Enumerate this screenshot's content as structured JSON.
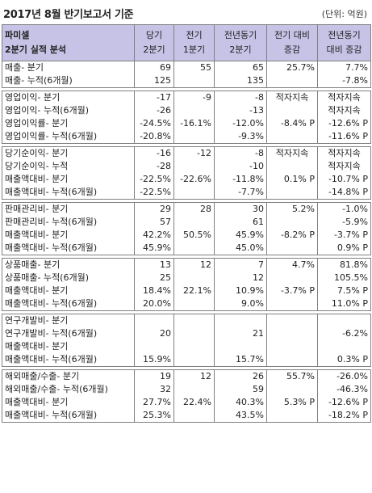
{
  "title": "2017년 8월 반기보고서 기준",
  "unit": "(단위: 억원)",
  "headers": [
    [
      "파미셀",
      "2분기 실적 분석"
    ],
    [
      "당기",
      "2분기"
    ],
    [
      "전기",
      "1분기"
    ],
    [
      "전년동기",
      "2분기"
    ],
    [
      "전기 대비",
      "증감"
    ],
    [
      "전년동기",
      "대비 증감"
    ]
  ],
  "groups": [
    {
      "rows": [
        [
          "매출- 분기",
          "69",
          "55",
          "65",
          "25.7%",
          "7.7%"
        ],
        [
          "매출- 누적(6개월)",
          "125",
          "",
          "135",
          "",
          "-7.8%"
        ]
      ]
    },
    {
      "rows": [
        [
          "영업이익- 분기",
          "-17",
          "-9",
          "-8",
          "적자지속",
          "적자지속"
        ],
        [
          "영업이익- 누적(6개월)",
          "-26",
          "",
          "-13",
          "",
          "적자지속"
        ],
        [
          "영업이익률- 분기",
          "-24.5%",
          "-16.1%",
          "-12.0%",
          "-8.4% P",
          "-12.6% P"
        ],
        [
          "영업이익률- 누적(6개월)",
          "-20.8%",
          "",
          "-9.3%",
          "",
          "-11.6% P"
        ]
      ]
    },
    {
      "rows": [
        [
          "당기순이익- 분기",
          "-16",
          "-12",
          "-8",
          "적자지속",
          "적자지속"
        ],
        [
          "당기순이익- 누적",
          "-28",
          "",
          "-10",
          "",
          "적자지속"
        ],
        [
          "매출액대비- 분기",
          "-22.5%",
          "-22.6%",
          "-11.8%",
          "0.1% P",
          "-10.7% P"
        ],
        [
          "매출액대비- 누적(6개월)",
          "-22.5%",
          "",
          "-7.7%",
          "",
          "-14.8% P"
        ]
      ]
    },
    {
      "rows": [
        [
          "판매관리비- 분기",
          "29",
          "28",
          "30",
          "5.2%",
          "-1.0%"
        ],
        [
          "판매관리비- 누적(6개월)",
          "57",
          "",
          "61",
          "",
          "-5.9%"
        ],
        [
          "매출액대비- 분기",
          "42.2%",
          "50.5%",
          "45.9%",
          "-8.2% P",
          "-3.7% P"
        ],
        [
          "매출액대비- 누적(6개월)",
          "45.9%",
          "",
          "45.0%",
          "",
          "0.9% P"
        ]
      ]
    },
    {
      "rows": [
        [
          "상품매출- 분기",
          "13",
          "12",
          "7",
          "4.7%",
          "81.8%"
        ],
        [
          "상품매출- 누적(6개월)",
          "25",
          "",
          "12",
          "",
          "105.5%"
        ],
        [
          "매출액대비- 분기",
          "18.4%",
          "22.1%",
          "10.9%",
          "-3.7% P",
          "7.5% P"
        ],
        [
          "매출액대비- 누적(6개월)",
          "20.0%",
          "",
          "9.0%",
          "",
          "11.0% P"
        ]
      ]
    },
    {
      "rows": [
        [
          "연구개발비- 분기",
          "",
          "",
          "",
          "",
          ""
        ],
        [
          "연구개발비- 누적(6개월)",
          "20",
          "",
          "21",
          "",
          "-6.2%"
        ],
        [
          "매출액대비- 분기",
          "",
          "",
          "",
          "",
          ""
        ],
        [
          "매출액대비- 누적(6개월)",
          "15.9%",
          "",
          "15.7%",
          "",
          "0.3% P"
        ]
      ]
    },
    {
      "rows": [
        [
          "해외매출/수출- 분기",
          "19",
          "12",
          "26",
          "55.7%",
          "-26.0%"
        ],
        [
          "해외매출/수출- 누적(6개월)",
          "32",
          "",
          "59",
          "",
          "-46.3%"
        ],
        [
          "매출액대비- 분기",
          "27.7%",
          "22.4%",
          "40.3%",
          "5.3% P",
          "-12.6% P"
        ],
        [
          "매출액대비- 누적(6개월)",
          "25.3%",
          "",
          "43.5%",
          "",
          "-18.2% P"
        ]
      ]
    }
  ]
}
